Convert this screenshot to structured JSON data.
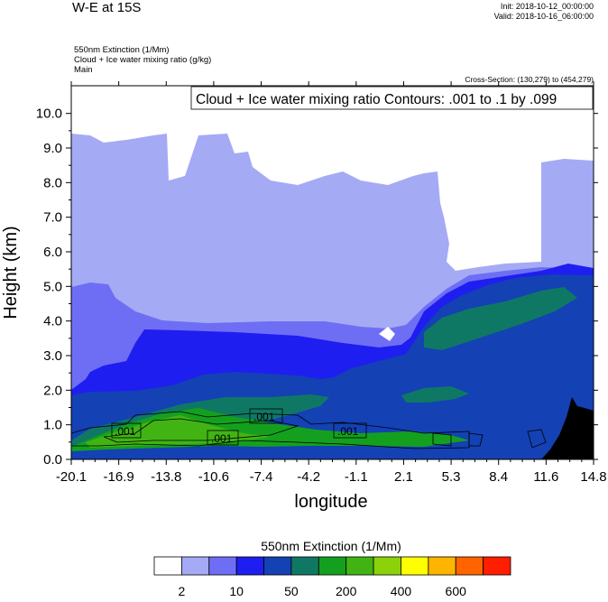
{
  "header": {
    "title": "W-E at 15S",
    "init": "Init: 2018-10-12_00:00:00",
    "valid": "Valid: 2018-10-16_06:00:00",
    "field1": "550nm Extinction   (1/Mm)",
    "field2": "Cloud + Ice water mixing ratio   (g/kg)",
    "field3": "Main",
    "cross_section": "Cross-Section: (130,279) to (454,279)"
  },
  "chart_data": {
    "type": "heatmap",
    "contour_note": "Cloud + Ice water mixing ratio Contours: .001 to .1 by .099",
    "xlabel": "longitude",
    "ylabel": "Height (km)",
    "xlim": [
      -20.1,
      14.8
    ],
    "ylim": [
      0,
      10.8
    ],
    "x_ticks": [
      "-20.1",
      "-16.9",
      "-13.8",
      "-10.6",
      "-7.4",
      "-4.2",
      "-1.1",
      "2.1",
      "5.3",
      "8.4",
      "11.6",
      "14.8"
    ],
    "y_ticks": [
      "0.0",
      "1.0",
      "2.0",
      "3.0",
      "4.0",
      "5.0",
      "6.0",
      "7.0",
      "8.0",
      "9.0",
      "10.0"
    ],
    "contour_labels": [
      ".001",
      ".001",
      ".001",
      ".001"
    ],
    "colorbar": {
      "title": "550nm Extinction  (1/Mm)",
      "colors": [
        "#ffffff",
        "#a5aaf5",
        "#6e6ef5",
        "#1e1ef0",
        "#1441b4",
        "#0f7864",
        "#14a01e",
        "#41b414",
        "#8cd20a",
        "#ffff00",
        "#ffb400",
        "#ff6400",
        "#ff1e00"
      ],
      "labels": [
        "2",
        "10",
        "50",
        "200",
        "400",
        "600"
      ]
    }
  }
}
